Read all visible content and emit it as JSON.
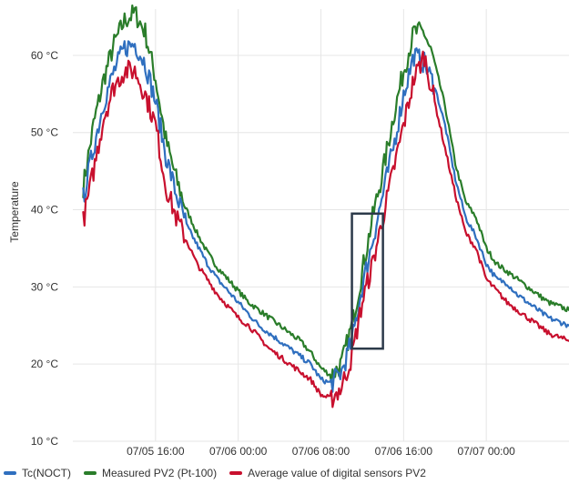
{
  "chart_data": {
    "type": "line",
    "ylabel": "Temperature",
    "ylim": [
      10,
      66
    ],
    "y_ticks": [
      "10 °C",
      "20 °C",
      "30 °C",
      "40 °C",
      "50 °C",
      "60 °C"
    ],
    "y_tick_values": [
      10,
      20,
      30,
      40,
      50,
      60
    ],
    "x_ticks": [
      "07/05 16:00",
      "07/06 00:00",
      "07/06 08:00",
      "07/06 16:00",
      "07/07 00:00"
    ],
    "x_tick_values": [
      "07/05 16:00",
      "07/06 00:00",
      "07/06 08:00",
      "07/06 16:00",
      "07/07 00:00"
    ],
    "xlim": [
      "07/05 08:00",
      "07/07 08:00"
    ],
    "grid": true,
    "legend_position": "bottom-left",
    "x": [
      "07/05 09:00",
      "07/05 10:00",
      "07/05 11:00",
      "07/05 12:00",
      "07/05 13:00",
      "07/05 14:00",
      "07/05 15:00",
      "07/05 16:00",
      "07/05 17:00",
      "07/05 18:00",
      "07/05 19:00",
      "07/05 20:00",
      "07/05 21:00",
      "07/05 22:00",
      "07/05 23:00",
      "07/06 00:00",
      "07/06 01:00",
      "07/06 02:00",
      "07/06 03:00",
      "07/06 04:00",
      "07/06 05:00",
      "07/06 06:00",
      "07/06 07:00",
      "07/06 08:00",
      "07/06 09:00",
      "07/06 10:00",
      "07/06 11:00",
      "07/06 12:00",
      "07/06 13:00",
      "07/06 14:00",
      "07/06 15:00",
      "07/06 16:00",
      "07/06 17:00",
      "07/06 18:00",
      "07/06 19:00",
      "07/06 20:00",
      "07/06 21:00",
      "07/06 22:00",
      "07/06 23:00",
      "07/07 00:00",
      "07/07 01:00",
      "07/07 02:00",
      "07/07 03:00",
      "07/07 04:00",
      "07/07 05:00",
      "07/07 06:00",
      "07/07 07:00",
      "07/07 08:00"
    ],
    "series": [
      {
        "name": "Tc(NOCT)",
        "color": "#2f6fbf",
        "values": [
          41.5,
          48,
          54,
          58,
          61,
          61.5,
          59,
          54,
          47,
          42,
          38,
          35.5,
          33,
          31,
          29.5,
          28,
          26.5,
          25,
          24,
          23,
          22,
          21,
          20,
          18,
          17.5,
          19,
          23,
          30,
          36,
          42,
          48,
          55,
          60,
          59,
          56,
          51,
          44,
          39,
          36.5,
          33,
          31,
          30.5,
          29,
          28,
          27,
          26,
          25.5,
          25
        ]
      },
      {
        "name": "Measured PV2 (Pt-100)",
        "color": "#2a7d2a",
        "values": [
          43,
          51,
          57,
          61.5,
          64.5,
          65.5,
          63,
          57,
          49,
          44,
          40,
          37,
          34.5,
          32.5,
          31,
          29.5,
          28,
          27,
          26,
          25,
          24,
          23,
          21.5,
          19.5,
          18.5,
          20,
          25,
          32,
          39,
          45,
          52,
          58,
          63,
          63,
          59,
          53.5,
          46,
          41,
          39,
          35,
          33,
          32,
          31,
          30,
          29,
          28,
          27.5,
          27
        ]
      },
      {
        "name": "Average value of digital sensors PV2",
        "color": "#c8102e",
        "values": [
          38.5,
          45,
          52,
          56,
          58,
          58,
          55,
          51,
          43,
          39,
          36,
          33,
          31,
          29,
          27.5,
          26,
          25,
          23.5,
          22,
          21,
          20,
          19,
          18,
          16,
          15.5,
          17,
          21,
          28,
          33,
          39,
          45,
          51,
          57,
          60,
          54,
          48,
          42,
          37,
          35,
          31,
          29.5,
          28,
          27,
          26,
          25,
          24,
          23.5,
          23
        ]
      }
    ],
    "annotations": [
      {
        "type": "rectangle",
        "x_range": [
          "07/06 11:00",
          "07/06 14:00"
        ],
        "y_range": [
          22,
          39.5
        ],
        "color": "#2c3a4a"
      }
    ]
  }
}
